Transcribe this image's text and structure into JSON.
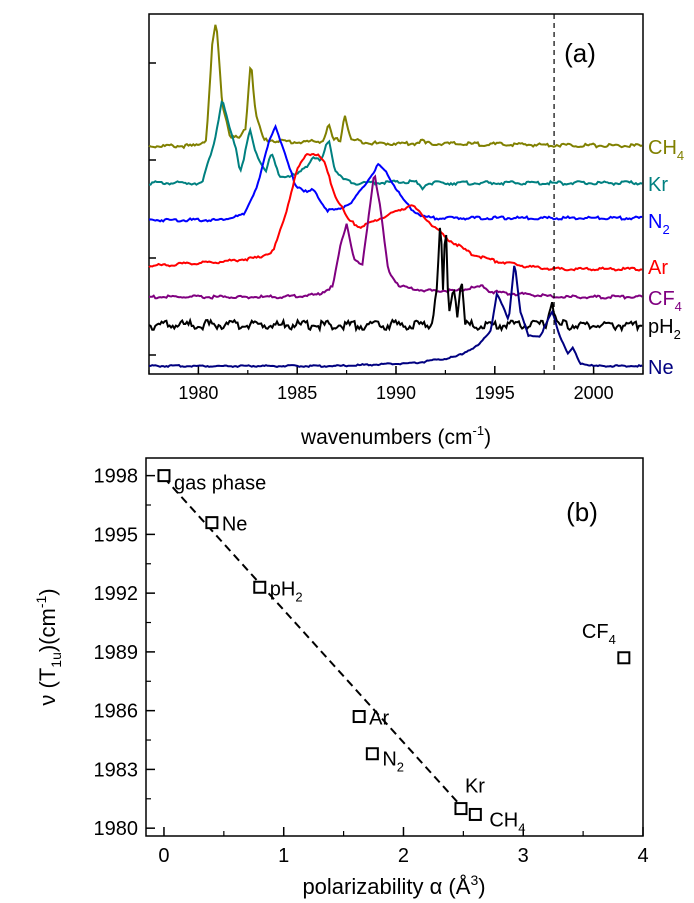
{
  "chart_data": [
    {
      "type": "line",
      "panel_label": "(a)",
      "xlabel_main": "wavenumbers (cm",
      "xlabel_sup": "-1",
      "xlabel_end": ")",
      "xlim": [
        1977.5,
        2002.5
      ],
      "x_ticks": [
        "1980",
        "1985",
        "1990",
        "1995",
        "2000"
      ],
      "reference_line_x": 1998,
      "series": [
        {
          "name": "CH",
          "sub": "4",
          "color": "#808000",
          "baseline": 0,
          "points": [
            [
              1977.5,
              0
            ],
            [
              1979.8,
              0
            ],
            [
              1980.4,
              0.05
            ],
            [
              1980.7,
              0.8
            ],
            [
              1980.9,
              1.0
            ],
            [
              1981.2,
              0.35
            ],
            [
              1981.6,
              0.08
            ],
            [
              1982.1,
              0.06
            ],
            [
              1982.4,
              0.15
            ],
            [
              1982.65,
              0.7
            ],
            [
              1982.9,
              0.25
            ],
            [
              1983.3,
              0.05
            ],
            [
              1985,
              0.03
            ],
            [
              1986.3,
              0.04
            ],
            [
              1986.6,
              0.17
            ],
            [
              1986.8,
              0.05
            ],
            [
              1987.2,
              0.05
            ],
            [
              1987.4,
              0.26
            ],
            [
              1987.7,
              0.05
            ],
            [
              1989,
              0.02
            ],
            [
              1991,
              0.02
            ],
            [
              1991.3,
              0.05
            ],
            [
              1991.5,
              0.02
            ],
            [
              2002.5,
              0
            ]
          ]
        },
        {
          "name": "Kr",
          "sub": "",
          "color": "#008080",
          "baseline": 0,
          "points": [
            [
              1977.5,
              0
            ],
            [
              1980.2,
              0
            ],
            [
              1980.8,
              0.35
            ],
            [
              1981.2,
              0.7
            ],
            [
              1981.6,
              0.45
            ],
            [
              1981.9,
              0.3
            ],
            [
              1982.1,
              0.1
            ],
            [
              1982.3,
              0.2
            ],
            [
              1982.6,
              0.45
            ],
            [
              1982.9,
              0.25
            ],
            [
              1983.4,
              0.1
            ],
            [
              1983.7,
              0.25
            ],
            [
              1984.1,
              0.05
            ],
            [
              1985,
              0.07
            ],
            [
              1985.5,
              0.15
            ],
            [
              1985.8,
              0.22
            ],
            [
              1986.2,
              0.18
            ],
            [
              1986.6,
              0.38
            ],
            [
              1986.9,
              0.12
            ],
            [
              1987.3,
              0.03
            ],
            [
              1988,
              0
            ],
            [
              1991,
              0.01
            ],
            [
              1991.3,
              -0.05
            ],
            [
              1991.6,
              0
            ],
            [
              2002.5,
              0
            ]
          ]
        },
        {
          "name": "N",
          "sub": "2",
          "color": "#0000FF",
          "baseline": 0,
          "points": [
            [
              1977.5,
              0
            ],
            [
              1981,
              0
            ],
            [
              1982.3,
              0.05
            ],
            [
              1983,
              0.35
            ],
            [
              1983.6,
              0.8
            ],
            [
              1983.9,
              0.95
            ],
            [
              1984.3,
              0.7
            ],
            [
              1984.9,
              0.35
            ],
            [
              1985.5,
              0.28
            ],
            [
              1985.8,
              0.3
            ],
            [
              1986.1,
              0.22
            ],
            [
              1986.5,
              0.1
            ],
            [
              1987,
              0.1
            ],
            [
              1987.8,
              0.18
            ],
            [
              1988.6,
              0.4
            ],
            [
              1989.1,
              0.55
            ],
            [
              1989.6,
              0.45
            ],
            [
              1990.2,
              0.25
            ],
            [
              1990.7,
              0.12
            ],
            [
              1991.4,
              0.03
            ],
            [
              1992,
              0.02
            ],
            [
              1996,
              0.02
            ],
            [
              2002.5,
              0.02
            ]
          ]
        },
        {
          "name": "Ar",
          "sub": "",
          "color": "#FF0000",
          "baseline": 0,
          "points": [
            [
              1977.5,
              0
            ],
            [
              1981,
              0.04
            ],
            [
              1983,
              0.08
            ],
            [
              1983.8,
              0.15
            ],
            [
              1984.4,
              0.5
            ],
            [
              1985,
              0.95
            ],
            [
              1985.5,
              1.1
            ],
            [
              1986,
              1.1
            ],
            [
              1986.4,
              1.0
            ],
            [
              1986.9,
              0.7
            ],
            [
              1987.6,
              0.45
            ],
            [
              1988.2,
              0.38
            ],
            [
              1989,
              0.45
            ],
            [
              1990.2,
              0.55
            ],
            [
              1990.8,
              0.6
            ],
            [
              1991.3,
              0.5
            ],
            [
              1992.5,
              0.28
            ],
            [
              1993.8,
              0.12
            ],
            [
              1995,
              0.05
            ],
            [
              1996.5,
              0
            ],
            [
              1998,
              -0.03
            ],
            [
              2002.5,
              -0.03
            ]
          ]
        },
        {
          "name": "CF",
          "sub": "4",
          "color": "#800080",
          "baseline": 0,
          "points": [
            [
              1977.5,
              0
            ],
            [
              1984,
              0
            ],
            [
              1986,
              0.02
            ],
            [
              1986.8,
              0.1
            ],
            [
              1987.2,
              0.5
            ],
            [
              1987.5,
              0.7
            ],
            [
              1987.9,
              0.35
            ],
            [
              1988.3,
              0.3
            ],
            [
              1988.7,
              0.9
            ],
            [
              1988.9,
              1.2
            ],
            [
              1989.2,
              0.85
            ],
            [
              1989.6,
              0.25
            ],
            [
              1990.2,
              0.1
            ],
            [
              1991.5,
              0.06
            ],
            [
              1993,
              0.06
            ],
            [
              1994.4,
              0.1
            ],
            [
              1994.8,
              0.05
            ],
            [
              1996,
              0.03
            ],
            [
              1997,
              0.02
            ],
            [
              1998,
              0
            ],
            [
              2002.5,
              0
            ]
          ]
        },
        {
          "name": "pH",
          "sub": "2",
          "color": "#000000",
          "baseline": 0,
          "points": [
            [
              1977.5,
              0
            ],
            [
              1991.8,
              0
            ],
            [
              1992.1,
              0.4
            ],
            [
              1992.25,
              1.0
            ],
            [
              1992.4,
              0.2
            ],
            [
              1992.5,
              1.05
            ],
            [
              1992.65,
              0.1
            ],
            [
              1992.8,
              0.25
            ],
            [
              1992.95,
              0.35
            ],
            [
              1993.1,
              0.1
            ],
            [
              1993.3,
              0.45
            ],
            [
              1993.5,
              0
            ],
            [
              1997.6,
              0
            ],
            [
              1997.9,
              0.25
            ],
            [
              1998.1,
              0
            ],
            [
              2002.5,
              0
            ]
          ]
        },
        {
          "name": "Ne",
          "sub": "",
          "color": "#000080",
          "baseline": 0,
          "points": [
            [
              1977.5,
              0
            ],
            [
              1987,
              0
            ],
            [
              1991,
              0.05
            ],
            [
              1993,
              0.15
            ],
            [
              1994.2,
              0.35
            ],
            [
              1994.8,
              0.6
            ],
            [
              1995.1,
              1.2
            ],
            [
              1995.4,
              1.0
            ],
            [
              1995.7,
              0.75
            ],
            [
              1996,
              1.75
            ],
            [
              1996.3,
              0.9
            ],
            [
              1996.7,
              0.5
            ],
            [
              1997.3,
              0.5
            ],
            [
              1997.9,
              0.9
            ],
            [
              1998.3,
              0.5
            ],
            [
              1998.7,
              0.2
            ],
            [
              1998.95,
              0.3
            ],
            [
              1999.3,
              0.05
            ],
            [
              2000,
              0
            ],
            [
              2002.5,
              0
            ]
          ]
        }
      ]
    },
    {
      "type": "scatter",
      "panel_label": "(b)",
      "xlabel": "polarizability α (Å",
      "xlabel_sup": "3",
      "xlabel_end": ")",
      "ylabel_main": "ν (T",
      "ylabel_sub": "1u",
      "ylabel_mid": ")(cm",
      "ylabel_sup": "-1",
      "ylabel_end": ")",
      "xlim": [
        -0.15,
        4.0
      ],
      "ylim": [
        1979.6,
        1998.9
      ],
      "x_ticks": [
        "0",
        "1",
        "2",
        "3",
        "4"
      ],
      "y_ticks": [
        "1980",
        "1983",
        "1986",
        "1989",
        "1992",
        "1995",
        "1998"
      ],
      "points": [
        {
          "label": "gas phase",
          "sub": "",
          "x": 0.0,
          "y": 1998.0
        },
        {
          "label": "Ne",
          "sub": "",
          "x": 0.4,
          "y": 1995.6
        },
        {
          "label": "pH",
          "sub": "2",
          "x": 0.8,
          "y": 1992.3
        },
        {
          "label": "Ar",
          "sub": "",
          "x": 1.63,
          "y": 1985.7
        },
        {
          "label": "N",
          "sub": "2",
          "x": 1.74,
          "y": 1983.8
        },
        {
          "label": "Kr",
          "sub": "",
          "x": 2.48,
          "y": 1981.0
        },
        {
          "label": "CH",
          "sub": "4",
          "x": 2.6,
          "y": 1980.7
        },
        {
          "label": "CF",
          "sub": "4",
          "x": 3.84,
          "y": 1988.7
        }
      ],
      "fit_line": [
        [
          0.0,
          1997.9
        ],
        [
          2.5,
          1981.0
        ]
      ]
    }
  ]
}
